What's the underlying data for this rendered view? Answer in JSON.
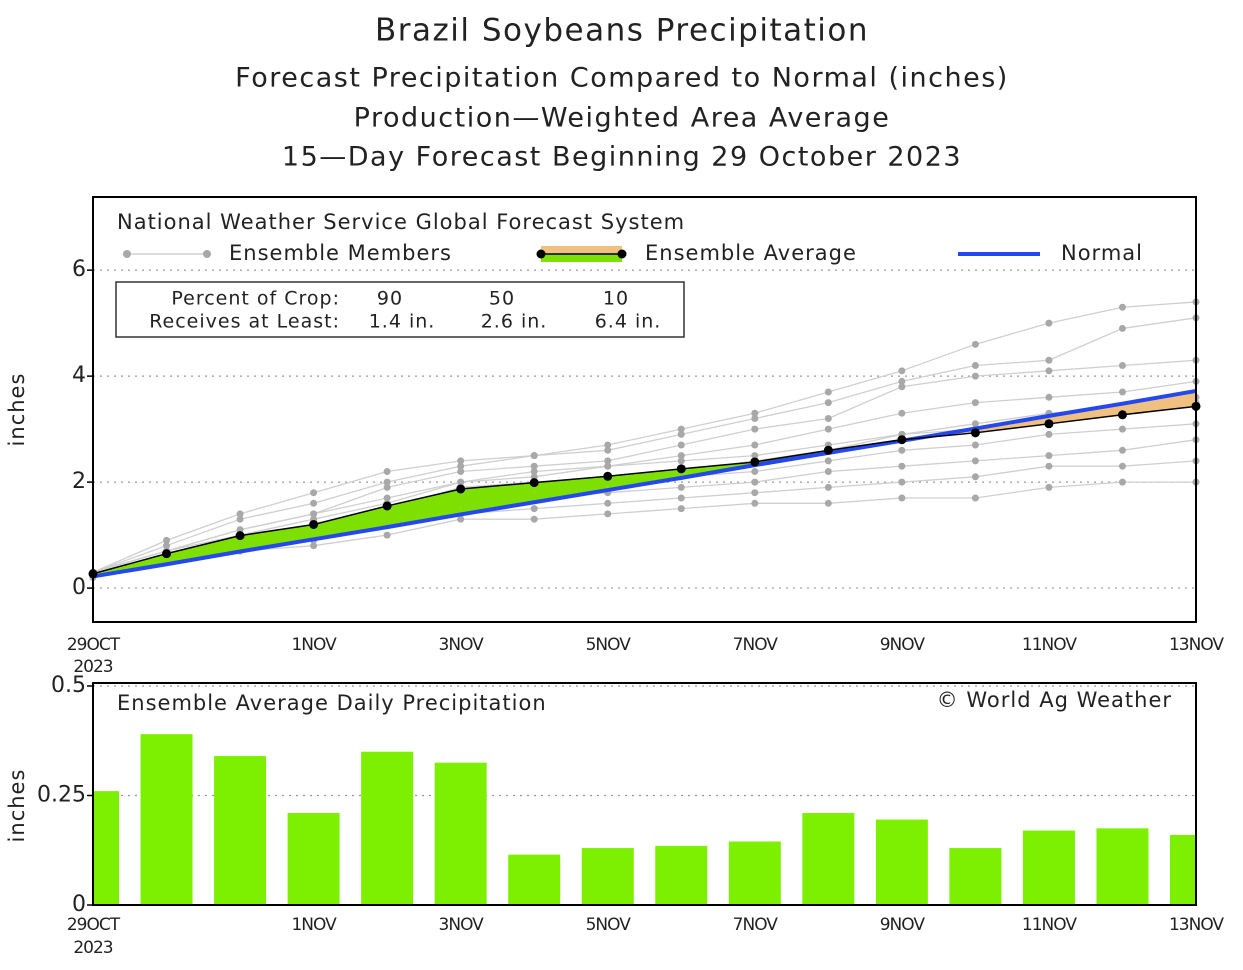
{
  "chart_data": [
    {
      "type": "line",
      "title": "Brazil Soybeans Precipitation",
      "subtitles": [
        "Forecast Precipitation Compared to Normal (inches)",
        "Production—Weighted Area Average",
        "15—Day Forecast Beginning 29 October 2023"
      ],
      "source": "National Weather Service Global Forecast System",
      "ylabel": "inches",
      "categories": [
        "29OCT",
        null,
        null,
        "1NOV",
        null,
        "3NOV",
        null,
        "5NOV",
        null,
        "7NOV",
        null,
        "9NOV",
        null,
        "11NOV",
        null,
        "13NOV"
      ],
      "x_year": "2023",
      "ylim": [
        -0.64,
        7.38
      ],
      "yticks": [
        0,
        2,
        4,
        6
      ],
      "grid": true,
      "members": {
        "name": "Ensemble Members",
        "color": "#a8a8a8",
        "values": [
          [
            0.3,
            0.9,
            1.4,
            1.8,
            2.2,
            2.4,
            2.5,
            2.7,
            3.0,
            3.3,
            3.7,
            4.1,
            4.6,
            5.0,
            5.3,
            5.4
          ],
          [
            0.3,
            0.8,
            1.3,
            1.6,
            2.0,
            2.3,
            2.5,
            2.6,
            2.9,
            3.2,
            3.5,
            3.9,
            4.2,
            4.3,
            4.9,
            5.1
          ],
          [
            0.3,
            0.7,
            1.1,
            1.4,
            1.9,
            2.2,
            2.3,
            2.4,
            2.7,
            3.0,
            3.2,
            3.8,
            4.0,
            4.1,
            4.2,
            4.3
          ],
          [
            0.3,
            0.7,
            1.0,
            1.3,
            1.6,
            2.0,
            2.1,
            2.3,
            2.5,
            2.7,
            3.0,
            3.3,
            3.5,
            3.6,
            3.7,
            3.9
          ],
          [
            0.25,
            0.6,
            1.0,
            1.2,
            1.5,
            1.9,
            2.0,
            2.1,
            2.2,
            2.4,
            2.6,
            2.9,
            3.0,
            3.2,
            3.3,
            3.5
          ],
          [
            0.25,
            0.6,
            0.9,
            1.1,
            1.4,
            1.7,
            1.9,
            2.0,
            2.1,
            2.2,
            2.4,
            2.6,
            2.7,
            2.9,
            3.0,
            3.1
          ],
          [
            0.25,
            0.6,
            0.9,
            1.0,
            1.3,
            1.6,
            1.7,
            1.8,
            1.9,
            2.0,
            2.2,
            2.3,
            2.4,
            2.5,
            2.6,
            2.8
          ],
          [
            0.25,
            0.5,
            0.8,
            0.9,
            1.2,
            1.4,
            1.5,
            1.6,
            1.7,
            1.8,
            1.9,
            2.0,
            2.1,
            2.3,
            2.3,
            2.4
          ],
          [
            0.2,
            0.5,
            0.7,
            0.8,
            1.0,
            1.3,
            1.3,
            1.4,
            1.5,
            1.6,
            1.6,
            1.7,
            1.7,
            1.9,
            2.0,
            2.0
          ],
          [
            0.3,
            0.7,
            1.1,
            1.4,
            1.7,
            2.0,
            2.2,
            2.3,
            2.4,
            2.5,
            2.7,
            2.9,
            3.1,
            3.3,
            3.4,
            3.6
          ]
        ]
      },
      "series": [
        {
          "name": "Ensemble Average",
          "color": "#000000",
          "values": [
            0.27,
            0.65,
            0.99,
            1.2,
            1.55,
            1.87,
            1.99,
            2.11,
            2.25,
            2.38,
            2.6,
            2.8,
            2.93,
            3.1,
            3.27,
            3.43
          ]
        },
        {
          "name": "Normal",
          "color": "#2448f0",
          "values": [
            0.22,
            0.45,
            0.69,
            0.92,
            1.15,
            1.39,
            1.62,
            1.85,
            2.08,
            2.32,
            2.55,
            2.78,
            3.01,
            3.25,
            3.48,
            3.72
          ]
        }
      ],
      "fill_above_color": "#7ee000",
      "fill_below_color": "#f0c080",
      "crop_table": {
        "rows": [
          [
            "Percent of Crop:",
            90,
            50,
            10
          ],
          [
            "Receives at Least:",
            "1.4 in.",
            "2.6 in.",
            "6.4 in."
          ]
        ]
      }
    },
    {
      "type": "bar",
      "annotation": "Ensemble Average Daily Precipitation",
      "credit": "© World Ag Weather",
      "ylabel": "inches",
      "categories": [
        "29OCT",
        null,
        null,
        "1NOV",
        null,
        "3NOV",
        null,
        "5NOV",
        null,
        "7NOV",
        null,
        "9NOV",
        null,
        "11NOV",
        null,
        "13NOV"
      ],
      "x_year": "2023",
      "ylim": [
        0,
        0.5
      ],
      "yticks": [
        0,
        0.25,
        0.5
      ],
      "grid": true,
      "color": "#7cf000",
      "values": [
        0.26,
        0.39,
        0.34,
        0.21,
        0.35,
        0.325,
        0.115,
        0.13,
        0.135,
        0.145,
        0.21,
        0.195,
        0.13,
        0.17,
        0.175,
        0.16
      ]
    }
  ]
}
